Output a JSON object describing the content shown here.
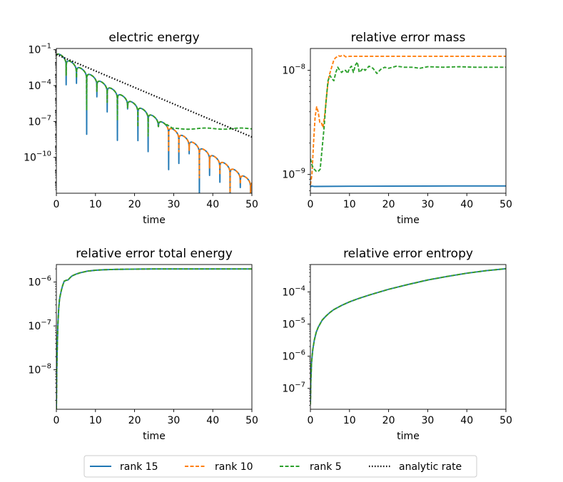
{
  "chart_data": [
    {
      "type": "line",
      "title": "electric energy",
      "xlabel": "time",
      "ylabel": "",
      "yscale": "log",
      "xlim": [
        0,
        50
      ],
      "ylim_log10": [
        -13.0,
        -0.9
      ],
      "xticks": [
        0,
        10,
        20,
        30,
        40,
        50
      ],
      "yticks": [
        {
          "exp": "−1",
          "log": -1
        },
        {
          "exp": "−4",
          "log": -4
        },
        {
          "exp": "−7",
          "log": -7
        },
        {
          "exp": "−10",
          "log": -10
        }
      ],
      "series": [
        {
          "name": "rank 15",
          "kind": "oscillating",
          "start_log": -1.2,
          "slope_per_time": -0.216,
          "floor_log": null,
          "dip_depth": 3.8
        },
        {
          "name": "rank 10",
          "kind": "oscillating",
          "start_log": -1.2,
          "slope_per_time": -0.216,
          "floor_log": null,
          "dip_depth": 1.8
        },
        {
          "name": "rank 5",
          "kind": "oscillating",
          "start_log": -1.2,
          "slope_per_time": -0.216,
          "floor_log": -7.6,
          "dip_depth": 1.8
        },
        {
          "name": "analytic rate",
          "kind": "line",
          "x": [
            0,
            50
          ],
          "y_log10": [
            -1.4,
            -8.3
          ]
        }
      ]
    },
    {
      "type": "line",
      "title": "relative error mass",
      "xlabel": "time",
      "ylabel": "",
      "yscale": "log",
      "xlim": [
        0,
        50
      ],
      "ylim_log10": [
        -9.18,
        -7.79
      ],
      "xticks": [
        0,
        10,
        20,
        30,
        40,
        50
      ],
      "yticks": [
        {
          "exp": "−8",
          "log": -8
        },
        {
          "exp": "−9",
          "log": -9
        }
      ],
      "series": [
        {
          "name": "rank 15",
          "x": [
            0,
            0.3,
            1,
            10,
            20,
            30,
            40,
            50
          ],
          "y_log10": [
            -9.12,
            -9.11,
            -9.115,
            -9.113,
            -9.112,
            -9.111,
            -9.11,
            -9.11
          ]
        },
        {
          "name": "rank 10",
          "x": [
            0,
            0.4,
            0.8,
            1.2,
            1.6,
            2.0,
            2.4,
            2.8,
            3.2,
            3.6,
            4.0,
            4.4,
            4.8,
            5.2,
            5.6,
            6.0,
            6.4,
            6.8,
            7.2,
            7.6,
            8.0,
            8.5,
            9.0,
            10,
            15,
            20,
            30,
            40,
            50
          ],
          "y_log10": [
            -9.1,
            -9.0,
            -8.7,
            -8.45,
            -8.35,
            -8.4,
            -8.5,
            -8.5,
            -8.55,
            -8.45,
            -8.3,
            -8.15,
            -8.05,
            -8.0,
            -7.95,
            -7.9,
            -7.88,
            -7.87,
            -7.86,
            -7.865,
            -7.86,
            -7.855,
            -7.87,
            -7.865,
            -7.865,
            -7.865,
            -7.865,
            -7.865,
            -7.865
          ]
        },
        {
          "name": "rank 5",
          "x": [
            0,
            0.5,
            1.0,
            1.5,
            2.0,
            2.5,
            3.0,
            3.5,
            4.0,
            4.5,
            5.0,
            5.5,
            6.0,
            6.5,
            7.0,
            7.5,
            8.0,
            8.5,
            9.0,
            9.5,
            10,
            10.5,
            11,
            11.5,
            12,
            12.5,
            13,
            13.5,
            14,
            15,
            16,
            17,
            18,
            19,
            20,
            22,
            24,
            26,
            28,
            30,
            34,
            38,
            42,
            46,
            50
          ],
          "y_log10": [
            -8.85,
            -8.92,
            -8.95,
            -8.97,
            -8.97,
            -8.95,
            -8.75,
            -8.55,
            -8.3,
            -8.1,
            -8.05,
            -8.08,
            -8.1,
            -8.02,
            -7.97,
            -8.0,
            -8.02,
            -8.0,
            -8.0,
            -8.03,
            -7.98,
            -7.96,
            -8.02,
            -7.95,
            -7.92,
            -8.02,
            -8.0,
            -7.98,
            -8.0,
            -7.96,
            -7.98,
            -8.03,
            -7.99,
            -7.97,
            -7.98,
            -7.96,
            -7.97,
            -7.97,
            -7.98,
            -7.965,
            -7.97,
            -7.965,
            -7.97,
            -7.97,
            -7.97
          ]
        }
      ]
    },
    {
      "type": "line",
      "title": "relative error total energy",
      "xlabel": "time",
      "ylabel": "",
      "yscale": "log",
      "xlim": [
        0,
        50
      ],
      "ylim_log10": [
        -8.9,
        -5.6
      ],
      "xticks": [
        0,
        10,
        20,
        30,
        40,
        50
      ],
      "yticks": [
        {
          "exp": "−6",
          "log": -6
        },
        {
          "exp": "−7",
          "log": -7
        },
        {
          "exp": "−8",
          "log": -8
        }
      ],
      "series": [
        {
          "name": "rank 15",
          "x": [
            0,
            0.1,
            0.25,
            0.4,
            0.6,
            0.8,
            1.0,
            1.3,
            1.6,
            2.0,
            2.5,
            3.0,
            3.5,
            4.0,
            5.0,
            6.0,
            8.0,
            10,
            12,
            15,
            20,
            25,
            30,
            35,
            40,
            45,
            50
          ],
          "y_log10": [
            -8.9,
            -8.0,
            -7.4,
            -6.95,
            -6.6,
            -6.4,
            -6.3,
            -6.18,
            -6.08,
            -5.98,
            -5.96,
            -5.95,
            -5.9,
            -5.86,
            -5.82,
            -5.79,
            -5.75,
            -5.73,
            -5.72,
            -5.71,
            -5.705,
            -5.7,
            -5.7,
            -5.7,
            -5.7,
            -5.7,
            -5.7
          ]
        },
        {
          "name": "rank 10",
          "x": [
            0,
            0.1,
            0.25,
            0.4,
            0.6,
            0.8,
            1.0,
            1.3,
            1.6,
            2.0,
            2.5,
            3.0,
            3.5,
            4.0,
            5.0,
            6.0,
            8.0,
            10,
            12,
            15,
            20,
            25,
            30,
            35,
            40,
            45,
            50
          ],
          "y_log10": [
            -8.9,
            -8.0,
            -7.4,
            -6.95,
            -6.6,
            -6.4,
            -6.3,
            -6.18,
            -6.08,
            -5.98,
            -5.96,
            -5.95,
            -5.9,
            -5.86,
            -5.82,
            -5.79,
            -5.75,
            -5.73,
            -5.72,
            -5.71,
            -5.705,
            -5.7,
            -5.7,
            -5.7,
            -5.7,
            -5.7,
            -5.7
          ]
        },
        {
          "name": "rank 5",
          "x": [
            0,
            0.1,
            0.25,
            0.4,
            0.6,
            0.8,
            1.0,
            1.3,
            1.6,
            2.0,
            2.5,
            3.0,
            3.5,
            4.0,
            5.0,
            6.0,
            8.0,
            10,
            12,
            15,
            20,
            25,
            30,
            35,
            40,
            45,
            50
          ],
          "y_log10": [
            -8.9,
            -8.0,
            -7.4,
            -6.95,
            -6.6,
            -6.4,
            -6.3,
            -6.18,
            -6.08,
            -5.98,
            -5.96,
            -5.95,
            -5.9,
            -5.86,
            -5.82,
            -5.79,
            -5.75,
            -5.73,
            -5.72,
            -5.71,
            -5.705,
            -5.7,
            -5.7,
            -5.7,
            -5.7,
            -5.7,
            -5.7
          ]
        }
      ]
    },
    {
      "type": "line",
      "title": "relative error entropy",
      "xlabel": "time",
      "ylabel": "",
      "yscale": "log",
      "xlim": [
        0,
        50
      ],
      "ylim_log10": [
        -7.65,
        -3.15
      ],
      "xticks": [
        0,
        10,
        20,
        30,
        40,
        50
      ],
      "yticks": [
        {
          "exp": "−4",
          "log": -4
        },
        {
          "exp": "−5",
          "log": -5
        },
        {
          "exp": "−6",
          "log": -6
        },
        {
          "exp": "−7",
          "log": -7
        }
      ],
      "series": [
        {
          "name": "rank 15",
          "x": [
            0,
            0.1,
            0.3,
            0.6,
            1.0,
            1.5,
            2.0,
            3.0,
            4.0,
            5.0,
            6.0,
            8.0,
            10,
            12,
            15,
            20,
            25,
            30,
            35,
            40,
            45,
            50
          ],
          "y_log10": [
            -7.5,
            -6.8,
            -6.2,
            -5.8,
            -5.5,
            -5.25,
            -5.1,
            -4.88,
            -4.75,
            -4.64,
            -4.55,
            -4.42,
            -4.31,
            -4.22,
            -4.1,
            -3.92,
            -3.77,
            -3.63,
            -3.52,
            -3.42,
            -3.34,
            -3.28
          ]
        },
        {
          "name": "rank 10",
          "x": [
            0,
            0.1,
            0.3,
            0.6,
            1.0,
            1.5,
            2.0,
            3.0,
            4.0,
            5.0,
            6.0,
            8.0,
            10,
            12,
            15,
            20,
            25,
            30,
            35,
            40,
            45,
            50
          ],
          "y_log10": [
            -7.5,
            -6.8,
            -6.2,
            -5.8,
            -5.5,
            -5.25,
            -5.1,
            -4.88,
            -4.75,
            -4.64,
            -4.55,
            -4.42,
            -4.31,
            -4.22,
            -4.1,
            -3.92,
            -3.77,
            -3.63,
            -3.52,
            -3.42,
            -3.34,
            -3.28
          ]
        },
        {
          "name": "rank 5",
          "x": [
            0,
            0.1,
            0.3,
            0.6,
            1.0,
            1.5,
            2.0,
            3.0,
            4.0,
            5.0,
            6.0,
            8.0,
            10,
            12,
            15,
            20,
            25,
            30,
            35,
            40,
            45,
            50
          ],
          "y_log10": [
            -7.5,
            -6.8,
            -6.2,
            -5.8,
            -5.5,
            -5.25,
            -5.1,
            -4.88,
            -4.75,
            -4.64,
            -4.55,
            -4.42,
            -4.31,
            -4.22,
            -4.1,
            -3.92,
            -3.77,
            -3.63,
            -3.52,
            -3.42,
            -3.34,
            -3.28
          ]
        }
      ]
    }
  ],
  "tick_base": "10",
  "legend": {
    "placement": "bottom-center",
    "entries": [
      {
        "label": "rank 15",
        "color": "#1f77b4",
        "dash": "solid"
      },
      {
        "label": "rank 10",
        "color": "#ff7f0e",
        "dash": "dashed"
      },
      {
        "label": "rank 5",
        "color": "#2ca02c",
        "dash": "dashed"
      },
      {
        "label": "analytic rate",
        "color": "#000000",
        "dash": "dotted"
      }
    ]
  }
}
